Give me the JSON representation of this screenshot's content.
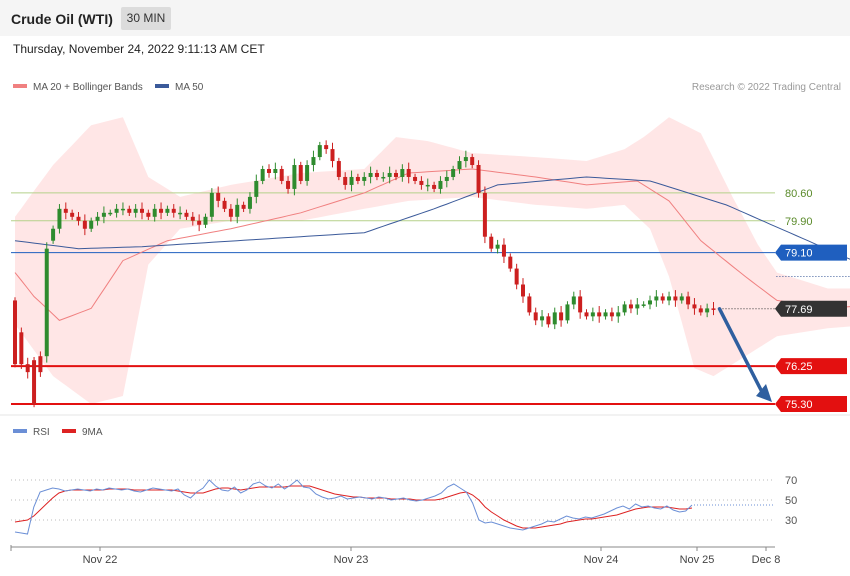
{
  "header": {
    "title": "Crude Oil (WTI)",
    "timeframe": "30 MIN",
    "datetime": "Thursday, November 24, 2022 9:11:13 AM CET",
    "credit": "Research © 2022 Trading Central"
  },
  "colors": {
    "bull": "#2e8b2e",
    "bear": "#cc1f1f",
    "ma20": "#f08080",
    "bands": "#ffdddd",
    "ma50": "#3b5a9a",
    "rsi": "#6b8fd6",
    "rsi_ma": "#dd2222",
    "resistance_line": "#b5d18a",
    "pivot": "#1f5fbf",
    "support": "#e31010",
    "last_price": "#333333",
    "arrow": "#2f5f9f"
  },
  "chart_data": [
    {
      "type": "candlestick",
      "legend": [
        {
          "label": "MA 20 + Bollinger Bands",
          "color": "#f08080"
        },
        {
          "label": "MA 50",
          "color": "#3b5a9a"
        }
      ],
      "x_ticks": [
        "Nov 22",
        "Nov 23",
        "Nov 24",
        "Nov 25",
        "Dec 8"
      ],
      "y_range": [
        75.0,
        82.5
      ],
      "grid": false,
      "levels": [
        {
          "value": 80.6,
          "label": "80.60",
          "kind": "resistance"
        },
        {
          "value": 79.9,
          "label": "79.90",
          "kind": "resistance"
        },
        {
          "value": 79.1,
          "label": "79.10",
          "kind": "pivot"
        },
        {
          "value": 77.69,
          "label": "77.69",
          "kind": "last"
        },
        {
          "value": 76.25,
          "label": "76.25",
          "kind": "support"
        },
        {
          "value": 75.3,
          "label": "75.30",
          "kind": "support"
        }
      ],
      "forecast": {
        "from": 77.69,
        "to": 75.3
      },
      "ma20_anchors": [
        [
          0,
          78.6
        ],
        [
          3,
          78.0
        ],
        [
          7,
          77.4
        ],
        [
          12,
          77.7
        ],
        [
          17,
          78.9
        ],
        [
          24,
          79.4
        ],
        [
          34,
          79.7
        ],
        [
          45,
          80.1
        ],
        [
          55,
          80.6
        ],
        [
          62,
          81.1
        ],
        [
          72,
          81.2
        ],
        [
          82,
          81.0
        ],
        [
          90,
          80.8
        ],
        [
          98,
          80.9
        ],
        [
          103,
          80.4
        ],
        [
          108,
          79.4
        ],
        [
          115,
          78.5
        ],
        [
          120,
          77.9
        ],
        [
          128,
          77.7
        ],
        [
          136,
          77.8
        ],
        [
          144,
          77.8
        ]
      ],
      "band_upper_anchors": [
        [
          0,
          80.0
        ],
        [
          6,
          81.3
        ],
        [
          12,
          82.3
        ],
        [
          17,
          82.5
        ],
        [
          21,
          81.0
        ],
        [
          26,
          80.5
        ],
        [
          34,
          80.8
        ],
        [
          45,
          81.1
        ],
        [
          55,
          81.2
        ],
        [
          60,
          82.0
        ],
        [
          65,
          81.9
        ],
        [
          72,
          81.6
        ],
        [
          82,
          81.5
        ],
        [
          90,
          81.4
        ],
        [
          96,
          81.7
        ],
        [
          99,
          82.0
        ],
        [
          103,
          82.5
        ],
        [
          108,
          82.1
        ],
        [
          113,
          80.5
        ],
        [
          117,
          79.3
        ],
        [
          120,
          78.6
        ],
        [
          128,
          78.2
        ],
        [
          136,
          78.2
        ],
        [
          144,
          78.1
        ]
      ],
      "band_lower_anchors": [
        [
          0,
          77.3
        ],
        [
          6,
          76.0
        ],
        [
          12,
          75.3
        ],
        [
          17,
          75.5
        ],
        [
          21,
          78.8
        ],
        [
          26,
          79.7
        ],
        [
          34,
          79.9
        ],
        [
          45,
          79.9
        ],
        [
          55,
          80.2
        ],
        [
          62,
          80.4
        ],
        [
          72,
          80.5
        ],
        [
          82,
          80.3
        ],
        [
          90,
          80.2
        ],
        [
          96,
          80.3
        ],
        [
          100,
          79.7
        ],
        [
          103,
          78.5
        ],
        [
          107,
          76.2
        ],
        [
          110,
          76.0
        ],
        [
          114,
          76.4
        ],
        [
          120,
          77.0
        ],
        [
          128,
          77.2
        ],
        [
          136,
          77.3
        ],
        [
          144,
          77.4
        ]
      ],
      "ma50_anchors": [
        [
          0,
          79.4
        ],
        [
          10,
          79.2
        ],
        [
          20,
          79.25
        ],
        [
          35,
          79.4
        ],
        [
          55,
          79.6
        ],
        [
          66,
          80.2
        ],
        [
          76,
          80.8
        ],
        [
          90,
          81.0
        ],
        [
          100,
          80.9
        ],
        [
          112,
          80.3
        ],
        [
          122,
          79.6
        ],
        [
          132,
          78.9
        ],
        [
          144,
          78.5
        ]
      ],
      "candles": [
        [
          77.9,
          76.3
        ],
        [
          77.1,
          76.3
        ],
        [
          76.3,
          76.1
        ],
        [
          76.4,
          75.3
        ],
        [
          76.5,
          76.1
        ],
        [
          76.5,
          79.2
        ],
        [
          79.4,
          79.7
        ],
        [
          79.7,
          80.2
        ],
        [
          80.2,
          80.1
        ],
        [
          80.1,
          80.0
        ],
        [
          80.0,
          79.9
        ],
        [
          79.9,
          79.7
        ],
        [
          79.7,
          79.9
        ],
        [
          79.9,
          80.0
        ],
        [
          80.0,
          80.1
        ],
        [
          80.1,
          80.1
        ],
        [
          80.1,
          80.2
        ],
        [
          80.2,
          80.2
        ],
        [
          80.2,
          80.1
        ],
        [
          80.1,
          80.2
        ],
        [
          80.2,
          80.1
        ],
        [
          80.1,
          80.0
        ],
        [
          80.0,
          80.2
        ],
        [
          80.2,
          80.1
        ],
        [
          80.1,
          80.2
        ],
        [
          80.2,
          80.1
        ],
        [
          80.1,
          80.1
        ],
        [
          80.1,
          80.0
        ],
        [
          80.0,
          79.9
        ],
        [
          79.9,
          79.8
        ],
        [
          79.8,
          80.0
        ],
        [
          80.0,
          80.6
        ],
        [
          80.6,
          80.4
        ],
        [
          80.4,
          80.2
        ],
        [
          80.2,
          80.0
        ],
        [
          80.0,
          80.3
        ],
        [
          80.3,
          80.2
        ],
        [
          80.2,
          80.5
        ],
        [
          80.5,
          80.9
        ],
        [
          80.9,
          81.2
        ],
        [
          81.2,
          81.1
        ],
        [
          81.1,
          81.2
        ],
        [
          81.2,
          80.9
        ],
        [
          80.9,
          80.7
        ],
        [
          80.7,
          81.3
        ],
        [
          81.3,
          80.9
        ],
        [
          80.9,
          81.3
        ],
        [
          81.3,
          81.5
        ],
        [
          81.5,
          81.8
        ],
        [
          81.8,
          81.7
        ],
        [
          81.7,
          81.4
        ],
        [
          81.4,
          81.0
        ],
        [
          81.0,
          80.8
        ],
        [
          80.8,
          81.0
        ],
        [
          81.0,
          80.9
        ],
        [
          80.9,
          81.0
        ],
        [
          81.0,
          81.1
        ],
        [
          81.1,
          81.0
        ],
        [
          81.0,
          81.0
        ],
        [
          81.0,
          81.1
        ],
        [
          81.1,
          81.0
        ],
        [
          81.0,
          81.2
        ],
        [
          81.2,
          81.0
        ],
        [
          81.0,
          80.9
        ],
        [
          80.9,
          80.8
        ],
        [
          80.8,
          80.8
        ],
        [
          80.8,
          80.7
        ],
        [
          80.7,
          80.9
        ],
        [
          80.9,
          81.0
        ],
        [
          81.0,
          81.2
        ],
        [
          81.2,
          81.4
        ],
        [
          81.4,
          81.5
        ],
        [
          81.5,
          81.3
        ],
        [
          81.3,
          80.6
        ],
        [
          80.6,
          79.5
        ],
        [
          79.5,
          79.2
        ],
        [
          79.2,
          79.3
        ],
        [
          79.3,
          79.0
        ],
        [
          79.0,
          78.7
        ],
        [
          78.7,
          78.3
        ],
        [
          78.3,
          78.0
        ],
        [
          78.0,
          77.6
        ],
        [
          77.6,
          77.4
        ],
        [
          77.4,
          77.5
        ],
        [
          77.5,
          77.3
        ],
        [
          77.3,
          77.6
        ],
        [
          77.6,
          77.4
        ],
        [
          77.4,
          77.8
        ],
        [
          77.8,
          78.0
        ],
        [
          78.0,
          77.6
        ],
        [
          77.6,
          77.5
        ],
        [
          77.5,
          77.6
        ],
        [
          77.6,
          77.5
        ],
        [
          77.5,
          77.6
        ],
        [
          77.6,
          77.5
        ],
        [
          77.5,
          77.6
        ],
        [
          77.6,
          77.8
        ],
        [
          77.8,
          77.7
        ],
        [
          77.7,
          77.8
        ],
        [
          77.8,
          77.8
        ],
        [
          77.8,
          77.9
        ],
        [
          77.9,
          78.0
        ],
        [
          78.0,
          77.9
        ],
        [
          77.9,
          78.0
        ],
        [
          78.0,
          77.9
        ],
        [
          77.9,
          78.0
        ],
        [
          78.0,
          77.8
        ],
        [
          77.8,
          77.7
        ],
        [
          77.7,
          77.6
        ],
        [
          77.6,
          77.7
        ],
        [
          77.7,
          77.69
        ]
      ]
    },
    {
      "type": "line",
      "legend": [
        {
          "label": "RSI",
          "color": "#6b8fd6"
        },
        {
          "label": "9MA",
          "color": "#dd2222"
        }
      ],
      "y_ticks": [
        70,
        50,
        30
      ],
      "y_range": [
        15,
        75
      ],
      "rsi": [
        18,
        17,
        16,
        43,
        58,
        60,
        62,
        61,
        59,
        60,
        61,
        60,
        59,
        61,
        60,
        62,
        61,
        60,
        61,
        59,
        58,
        60,
        62,
        61,
        60,
        59,
        61,
        55,
        52,
        58,
        62,
        70,
        64,
        60,
        59,
        63,
        57,
        60,
        66,
        68,
        64,
        62,
        66,
        61,
        65,
        70,
        63,
        62,
        56,
        53,
        51,
        52,
        54,
        51,
        52,
        53,
        52,
        51,
        53,
        52,
        50,
        51,
        52,
        50,
        49,
        50,
        52,
        54,
        57,
        63,
        66,
        62,
        58,
        47,
        30,
        27,
        28,
        26,
        24,
        22,
        21,
        20,
        22,
        24,
        26,
        29,
        28,
        31,
        34,
        32,
        31,
        33,
        32,
        34,
        36,
        39,
        42,
        44,
        41,
        46,
        43,
        44,
        42,
        41,
        44,
        40,
        38,
        39,
        45
      ],
      "ma9": [
        28,
        29,
        30,
        34,
        40,
        46,
        52,
        57,
        59,
        60,
        60,
        60,
        60,
        60,
        60,
        61,
        61,
        61,
        61,
        60,
        60,
        60,
        60,
        60,
        60,
        60,
        59,
        58,
        57,
        57,
        57,
        59,
        61,
        62,
        62,
        61,
        60,
        61,
        62,
        63,
        63,
        63,
        63,
        63,
        64,
        64,
        64,
        64,
        62,
        60,
        58,
        56,
        55,
        54,
        53,
        53,
        52,
        52,
        52,
        52,
        51,
        51,
        51,
        51,
        50,
        50,
        50,
        50,
        51,
        53,
        55,
        57,
        58,
        55,
        50,
        43,
        38,
        34,
        30,
        27,
        24,
        22,
        22,
        22,
        23,
        24,
        25,
        26,
        28,
        29,
        30,
        31,
        31,
        32,
        33,
        34,
        35,
        37,
        39,
        41,
        42,
        43,
        43,
        43,
        43,
        42,
        41,
        41,
        42
      ]
    }
  ]
}
